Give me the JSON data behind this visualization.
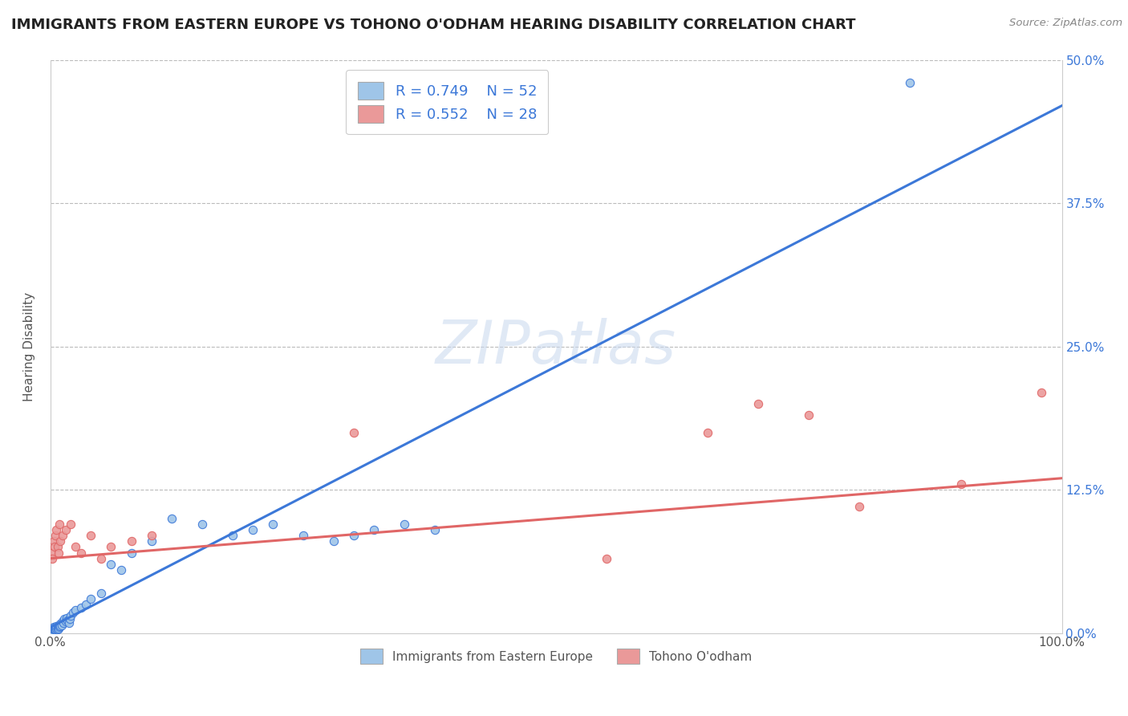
{
  "title": "IMMIGRANTS FROM EASTERN EUROPE VS TOHONO O'ODHAM HEARING DISABILITY CORRELATION CHART",
  "source": "Source: ZipAtlas.com",
  "ylabel": "Hearing Disability",
  "xlim": [
    0,
    1.0
  ],
  "ylim": [
    0,
    0.5
  ],
  "legend_label1": "Immigrants from Eastern Europe",
  "legend_label2": "Tohono O'odham",
  "legend_r1": "R = 0.749",
  "legend_n1": "N = 52",
  "legend_r2": "R = 0.552",
  "legend_n2": "N = 28",
  "color_blue": "#9fc5e8",
  "color_pink": "#ea9999",
  "line_blue": "#3c78d8",
  "line_pink": "#e06666",
  "watermark": "ZIPatlas",
  "blue_scatter_x": [
    0.001,
    0.001,
    0.002,
    0.002,
    0.003,
    0.003,
    0.004,
    0.004,
    0.005,
    0.005,
    0.006,
    0.006,
    0.007,
    0.007,
    0.008,
    0.008,
    0.009,
    0.009,
    0.01,
    0.01,
    0.011,
    0.012,
    0.013,
    0.014,
    0.015,
    0.016,
    0.017,
    0.018,
    0.019,
    0.02,
    0.022,
    0.025,
    0.03,
    0.035,
    0.04,
    0.05,
    0.06,
    0.07,
    0.08,
    0.1,
    0.12,
    0.15,
    0.18,
    0.2,
    0.22,
    0.25,
    0.28,
    0.3,
    0.32,
    0.35,
    0.38,
    0.85
  ],
  "blue_scatter_y": [
    0.002,
    0.003,
    0.002,
    0.004,
    0.003,
    0.005,
    0.003,
    0.004,
    0.003,
    0.005,
    0.004,
    0.006,
    0.005,
    0.003,
    0.006,
    0.004,
    0.005,
    0.007,
    0.008,
    0.006,
    0.007,
    0.01,
    0.009,
    0.012,
    0.01,
    0.013,
    0.011,
    0.009,
    0.012,
    0.015,
    0.018,
    0.02,
    0.022,
    0.025,
    0.03,
    0.035,
    0.06,
    0.055,
    0.07,
    0.08,
    0.1,
    0.095,
    0.085,
    0.09,
    0.095,
    0.085,
    0.08,
    0.085,
    0.09,
    0.095,
    0.09,
    0.48
  ],
  "pink_scatter_x": [
    0.001,
    0.002,
    0.003,
    0.004,
    0.005,
    0.006,
    0.007,
    0.008,
    0.009,
    0.01,
    0.012,
    0.015,
    0.02,
    0.025,
    0.03,
    0.04,
    0.05,
    0.06,
    0.08,
    0.1,
    0.3,
    0.55,
    0.65,
    0.7,
    0.75,
    0.8,
    0.9,
    0.98
  ],
  "pink_scatter_y": [
    0.07,
    0.065,
    0.08,
    0.075,
    0.085,
    0.09,
    0.075,
    0.07,
    0.095,
    0.08,
    0.085,
    0.09,
    0.095,
    0.075,
    0.07,
    0.085,
    0.065,
    0.075,
    0.08,
    0.085,
    0.175,
    0.065,
    0.175,
    0.2,
    0.19,
    0.11,
    0.13,
    0.21
  ],
  "blue_trend_x": [
    0.0,
    1.0
  ],
  "blue_trend_y": [
    0.005,
    0.46
  ],
  "pink_trend_x": [
    0.0,
    1.0
  ],
  "pink_trend_y": [
    0.065,
    0.135
  ]
}
